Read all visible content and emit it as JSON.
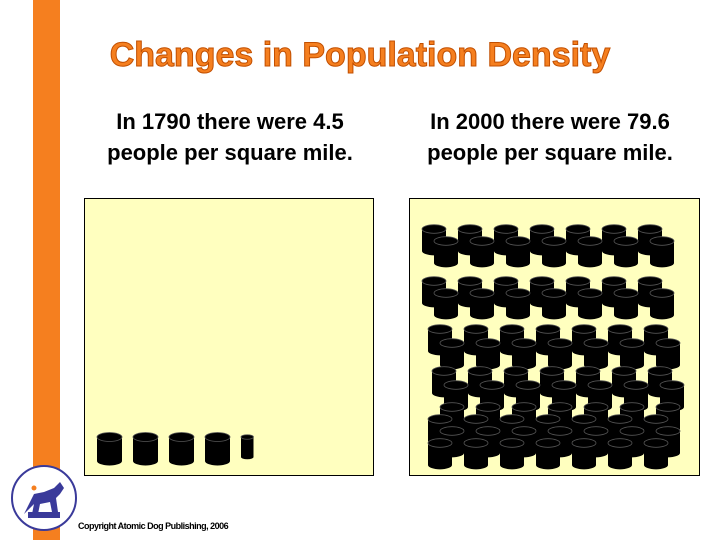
{
  "slide": {
    "title": "Changes in Population Density",
    "caption_1790": "In 1790 there were 4.5 people per square mile.",
    "caption_2000": "In 2000 there were 79.6 people per square mile.",
    "copyright": "Copyright Atomic Dog Publishing, 2006"
  },
  "density": {
    "year_1790": 4.5,
    "year_2000": 79.6,
    "unit": "people per square mile"
  },
  "colors": {
    "accent": "#f57f1f",
    "panel_bg": "#ffffbf",
    "figure": "#000000",
    "logo_blue": "#3a3a9a"
  },
  "icons": {
    "person_marker": "cylinder-icon",
    "logo": "atomic-dog-logo-icon"
  }
}
